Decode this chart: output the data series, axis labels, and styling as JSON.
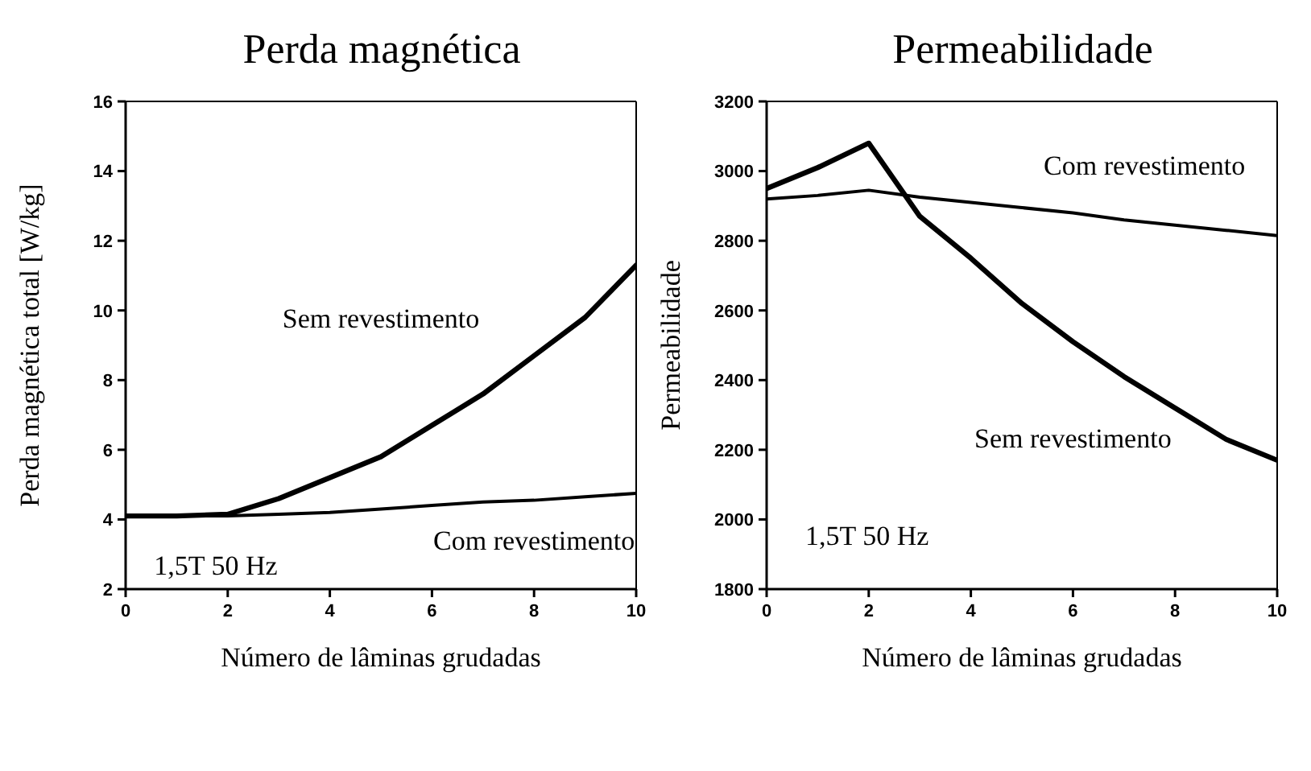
{
  "chart_data": [
    {
      "type": "line",
      "title": "Perda magnética",
      "xlabel": "Número de lâminas grudadas",
      "ylabel": "Perda magnética total [W/kg]",
      "x": [
        0,
        1,
        2,
        3,
        4,
        5,
        6,
        7,
        8,
        9,
        10
      ],
      "xlim": [
        0,
        10
      ],
      "xticks": [
        0,
        2,
        4,
        6,
        8,
        10
      ],
      "ylim": [
        2,
        16
      ],
      "yticks": [
        2,
        4,
        6,
        8,
        10,
        12,
        14,
        16
      ],
      "grid": false,
      "legend": false,
      "marker": "none",
      "line_style": "solid",
      "annotations": [
        "1,5T 50 Hz"
      ],
      "series": [
        {
          "name": "Sem revestimento",
          "color": "#000000",
          "values": [
            4.1,
            4.1,
            4.15,
            4.6,
            5.2,
            5.8,
            6.7,
            7.6,
            8.7,
            9.8,
            11.3
          ]
        },
        {
          "name": "Com revestimento",
          "color": "#000000",
          "values": [
            4.1,
            4.1,
            4.1,
            4.15,
            4.2,
            4.3,
            4.4,
            4.5,
            4.55,
            4.65,
            4.75
          ]
        }
      ]
    },
    {
      "type": "line",
      "title": "Permeabilidade",
      "xlabel": "Número de lâminas grudadas",
      "ylabel": "Permeabilidade",
      "x": [
        0,
        1,
        2,
        3,
        4,
        5,
        6,
        7,
        8,
        9,
        10
      ],
      "xlim": [
        0,
        10
      ],
      "xticks": [
        0,
        2,
        4,
        6,
        8,
        10
      ],
      "ylim": [
        1800,
        3200
      ],
      "yticks": [
        1800,
        2000,
        2200,
        2400,
        2600,
        2800,
        3000,
        3200
      ],
      "grid": false,
      "legend": false,
      "marker": "none",
      "line_style": "solid",
      "annotations": [
        "1,5T 50 Hz"
      ],
      "series": [
        {
          "name": "Sem revestimento",
          "color": "#000000",
          "values": [
            2950,
            3010,
            3080,
            2870,
            2750,
            2620,
            2510,
            2410,
            2320,
            2230,
            2170
          ]
        },
        {
          "name": "Com revestimento",
          "color": "#000000",
          "values": [
            2920,
            2930,
            2945,
            2925,
            2910,
            2895,
            2880,
            2860,
            2845,
            2830,
            2815
          ]
        }
      ]
    }
  ]
}
